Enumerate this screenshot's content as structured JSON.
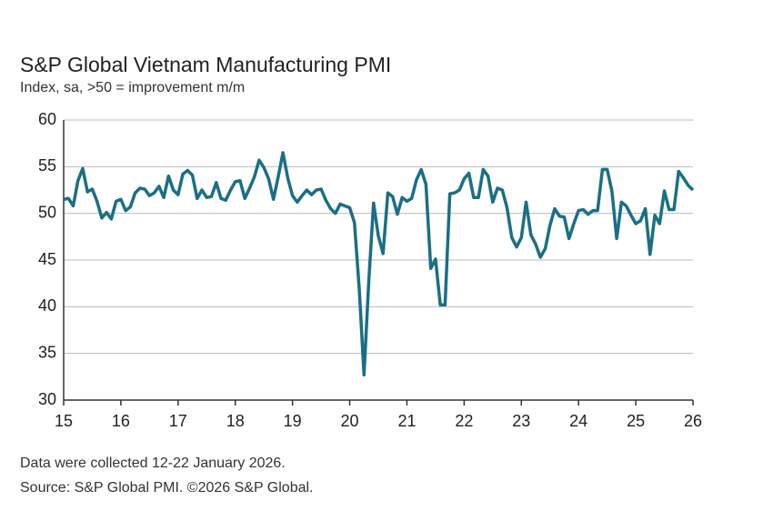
{
  "chart_data": {
    "type": "line",
    "title": "S&P Global Vietnam Manufacturing PMI",
    "subtitle": "Index, sa, >50 = improvement m/m",
    "notes": [
      "Data were collected 12-22 January 2026.",
      "Source: S&P Global PMI. ©2026 S&P Global."
    ],
    "xlim": [
      15,
      26
    ],
    "xticks": [
      15,
      16,
      17,
      18,
      19,
      20,
      21,
      22,
      23,
      24,
      25,
      26
    ],
    "ylim": [
      30,
      60
    ],
    "yticks": [
      30,
      35,
      40,
      45,
      50,
      55,
      60
    ],
    "grid": true,
    "x": [
      15,
      15.083,
      15.167,
      15.25,
      15.333,
      15.417,
      15.5,
      15.583,
      15.667,
      15.75,
      15.833,
      15.917,
      16,
      16.083,
      16.167,
      16.25,
      16.333,
      16.417,
      16.5,
      16.583,
      16.667,
      16.75,
      16.833,
      16.917,
      17,
      17.083,
      17.167,
      17.25,
      17.333,
      17.417,
      17.5,
      17.583,
      17.667,
      17.75,
      17.833,
      17.917,
      18,
      18.083,
      18.167,
      18.25,
      18.333,
      18.417,
      18.5,
      18.583,
      18.667,
      18.75,
      18.833,
      18.917,
      19,
      19.083,
      19.167,
      19.25,
      19.333,
      19.417,
      19.5,
      19.583,
      19.667,
      19.75,
      19.833,
      19.917,
      20,
      20.083,
      20.167,
      20.25,
      20.333,
      20.417,
      20.5,
      20.583,
      20.667,
      20.75,
      20.833,
      20.917,
      21,
      21.083,
      21.167,
      21.25,
      21.333,
      21.417,
      21.5,
      21.583,
      21.667,
      21.75,
      21.833,
      21.917,
      22,
      22.083,
      22.167,
      22.25,
      22.333,
      22.417,
      22.5,
      22.583,
      22.667,
      22.75,
      22.833,
      22.917,
      23,
      23.083,
      23.167,
      23.25,
      23.333,
      23.417,
      23.5,
      23.583,
      23.667,
      23.75,
      23.833,
      23.917,
      24,
      24.083,
      24.167,
      24.25,
      24.333,
      24.417,
      24.5,
      24.583,
      24.667,
      24.75,
      24.833,
      24.917,
      25,
      25.083,
      25.167,
      25.25,
      25.333,
      25.417,
      25.5,
      25.583,
      25.667,
      25.75,
      25.833,
      25.917,
      26
    ],
    "series": [
      {
        "color": "#1b6f85",
        "values": [
          51.5,
          51.6,
          50.8,
          53.5,
          54.8,
          52.3,
          52.6,
          51.3,
          49.5,
          50.1,
          49.4,
          51.3,
          51.5,
          50.3,
          50.7,
          52.2,
          52.7,
          52.6,
          51.9,
          52.2,
          52.9,
          51.7,
          54.0,
          52.5,
          52.0,
          54.2,
          54.6,
          54.1,
          51.6,
          52.5,
          51.7,
          51.8,
          53.3,
          51.6,
          51.4,
          52.5,
          53.4,
          53.5,
          51.6,
          52.7,
          53.9,
          55.7,
          54.9,
          53.7,
          51.5,
          53.9,
          56.5,
          53.8,
          51.9,
          51.2,
          51.9,
          52.5,
          52.0,
          52.5,
          52.6,
          51.4,
          50.5,
          50.0,
          51.0,
          50.8,
          50.6,
          49.0,
          41.9,
          32.7,
          42.7,
          51.1,
          47.6,
          45.7,
          52.2,
          51.8,
          49.9,
          51.7,
          51.3,
          51.6,
          53.6,
          54.7,
          53.1,
          44.1,
          45.1,
          40.2,
          40.2,
          52.1,
          52.2,
          52.5,
          53.7,
          54.3,
          51.7,
          51.7,
          54.7,
          54.0,
          51.2,
          52.7,
          52.5,
          50.6,
          47.4,
          46.4,
          47.4,
          51.2,
          47.7,
          46.7,
          45.3,
          46.2,
          48.7,
          50.5,
          49.7,
          49.6,
          47.3,
          48.9,
          50.3,
          50.4,
          49.9,
          50.3,
          50.3,
          54.7,
          54.7,
          52.4,
          47.3,
          51.2,
          50.8,
          49.8,
          48.9,
          49.2,
          50.5,
          45.6,
          49.8,
          48.9,
          52.4,
          50.4,
          50.4,
          54.5,
          53.8,
          53.0,
          52.5
        ]
      }
    ]
  }
}
